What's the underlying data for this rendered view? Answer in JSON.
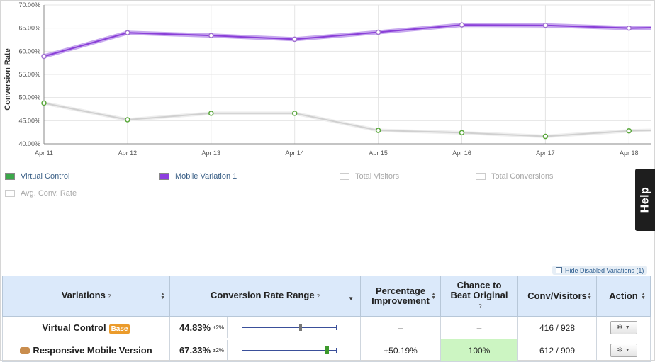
{
  "chart_data": {
    "type": "line",
    "ylabel": "Conversion Rate",
    "xlabel": "",
    "x": [
      "Apr 11",
      "Apr 12",
      "Apr 13",
      "Apr 14",
      "Apr 15",
      "Apr 16",
      "Apr 17",
      "Apr 18"
    ],
    "yticks": [
      "40.00%",
      "45.00%",
      "50.00%",
      "55.00%",
      "60.00%",
      "65.00%",
      "70.00%"
    ],
    "ylim": [
      40,
      70
    ],
    "grid": true,
    "series": [
      {
        "name": "Virtual Control",
        "values": [
          48.8,
          45.2,
          46.6,
          46.6,
          42.9,
          42.4,
          41.6,
          42.8
        ],
        "color": "#d0d0d0",
        "marker": "#5aa83c"
      },
      {
        "name": "Mobile Variation 1",
        "values": [
          58.9,
          64.0,
          63.4,
          62.6,
          64.1,
          65.7,
          65.6,
          65.0
        ],
        "color": "#8a3fd8",
        "marker": "#a070d0"
      }
    ]
  },
  "legend": [
    {
      "label": "Virtual Control",
      "color": "#3ca84a",
      "active": true
    },
    {
      "label": "Mobile Variation 1",
      "color": "#8e3ee0",
      "active": true
    },
    {
      "label": "Total Visitors",
      "color": "#ffffff",
      "active": false
    },
    {
      "label": "Total Conversions",
      "color": "#ffffff",
      "active": false
    },
    {
      "label": "Avg. Conv. Rate",
      "color": "#ffffff",
      "active": false
    }
  ],
  "help_label": "Help",
  "hide_disabled_label": "Hide Disabled Variations (1)",
  "table": {
    "headers": {
      "variations": "Variations",
      "range": "Conversion Rate Range",
      "improvement": "Percentage Improvement",
      "chance": "Chance to Beat Original",
      "conv": "Conv/Visitors",
      "action": "Action"
    },
    "rows": [
      {
        "name": "Virtual Control",
        "badge": "Base",
        "rate": "44.83%",
        "pm": "±2%",
        "improvement": "–",
        "chance": "–",
        "conv": "416 / 928",
        "range_marker": 0.62,
        "marker_color": "#777777"
      },
      {
        "name": "Responsive Mobile Version",
        "badge": "",
        "rate": "67.33%",
        "pm": "±2%",
        "improvement": "+50.19%",
        "chance": "100%",
        "conv": "612 / 909",
        "range_marker": 0.89,
        "marker_color": "#3d9a2c"
      }
    ]
  }
}
